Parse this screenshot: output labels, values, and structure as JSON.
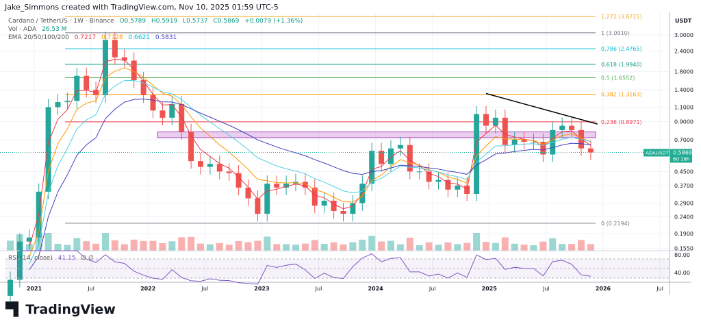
{
  "credit": "Jake_Simmons created with TradingView.com, Nov 10, 2025 01:59 UTC-5",
  "legend": {
    "symbol": "Cardano / TetherUS · 1W · Binance",
    "o": "O0.5789",
    "h": "H0.5919",
    "l": "L0.5737",
    "c": "C0.5869",
    "chg": "+0.0079 (+1.36%)",
    "vol_label": "Vol · ADA",
    "vol_value": "26.53 M",
    "ema_label": "EMA 20/50/100/200",
    "ema": [
      "0.7217",
      "0.7128",
      "0.6621",
      "0.5831"
    ],
    "rsi_label": "RSI (14, close)",
    "rsi_value": "41.15",
    "rsi_extra": "∅ ∅"
  },
  "colors": {
    "up": "#26a69a",
    "down": "#ef5350",
    "ema20": "#f23645",
    "ema50": "#ff9800",
    "ema100": "#4dd0e1",
    "ema200": "#3f3fbf",
    "rsi": "#7e57c2",
    "accent": "#22ab94"
  },
  "logo": "TradingView",
  "chart_data": {
    "type": "candlestick",
    "scale": "log",
    "currency": "USDT",
    "y_ticks": [
      3.0,
      2.4,
      1.8,
      1.4,
      1.1,
      0.9,
      0.7,
      0.45,
      0.37,
      0.29,
      0.24,
      0.19,
      0.155
    ],
    "y_tick_labels": [
      "3.0000",
      "2.4000",
      "1.8000",
      "1.4000",
      "1.1000",
      "0.9000",
      "0.7000",
      "0.4500",
      "0.3700",
      "0.2900",
      "0.2400",
      "0.1900",
      "0.1550"
    ],
    "x_ticks": [
      "2021",
      "Jul",
      "2022",
      "Jul",
      "2023",
      "Jul",
      "2024",
      "Jul",
      "2025",
      "Jul",
      "2026",
      "Jul"
    ],
    "months": [
      "2020-10",
      "2020-11",
      "2020-12",
      "2021-01",
      "2021-02",
      "2021-03",
      "2021-04",
      "2021-05",
      "2021-06",
      "2021-07",
      "2021-08",
      "2021-09",
      "2021-10",
      "2021-11",
      "2021-12",
      "2022-01",
      "2022-02",
      "2022-03",
      "2022-04",
      "2022-05",
      "2022-06",
      "2022-07",
      "2022-08",
      "2022-09",
      "2022-10",
      "2022-11",
      "2022-12",
      "2023-01",
      "2023-02",
      "2023-03",
      "2023-04",
      "2023-05",
      "2023-06",
      "2023-07",
      "2023-08",
      "2023-09",
      "2023-10",
      "2023-11",
      "2023-12",
      "2024-01",
      "2024-02",
      "2024-03",
      "2024-04",
      "2024-05",
      "2024-06",
      "2024-07",
      "2024-08",
      "2024-09",
      "2024-10",
      "2024-11",
      "2024-12",
      "2025-01",
      "2025-02",
      "2025-03",
      "2025-04",
      "2025-05",
      "2025-06",
      "2025-07",
      "2025-08",
      "2025-09",
      "2025-10",
      "2025-11"
    ],
    "closes": [
      0.1,
      0.17,
      0.18,
      0.34,
      1.1,
      1.18,
      1.2,
      1.7,
      1.4,
      1.3,
      2.8,
      2.2,
      2.1,
      1.6,
      1.3,
      1.05,
      0.95,
      1.15,
      0.78,
      0.52,
      0.48,
      0.5,
      0.45,
      0.44,
      0.36,
      0.31,
      0.25,
      0.38,
      0.36,
      0.38,
      0.39,
      0.36,
      0.28,
      0.3,
      0.26,
      0.25,
      0.29,
      0.38,
      0.6,
      0.5,
      0.62,
      0.65,
      0.45,
      0.45,
      0.39,
      0.4,
      0.35,
      0.37,
      0.33,
      1.0,
      0.85,
      0.95,
      0.65,
      0.7,
      0.68,
      0.68,
      0.57,
      0.8,
      0.85,
      0.8,
      0.62,
      0.5869
    ],
    "fib_levels": [
      {
        "label": "1.272 (3.8721)",
        "value": 3.8721,
        "color": "#f5a623"
      },
      {
        "label": "1 (3.0910)",
        "value": 3.091,
        "color": "#787b86"
      },
      {
        "label": "0.786 (2.4765)",
        "value": 2.4765,
        "color": "#00bcd4"
      },
      {
        "label": "0.618 (1.9940)",
        "value": 1.994,
        "color": "#089981"
      },
      {
        "label": "0.5 (1.6552)",
        "value": 1.6552,
        "color": "#4caf50"
      },
      {
        "label": "0.382 (1.3163)",
        "value": 1.3163,
        "color": "#ff9800"
      },
      {
        "label": "0.236 (0.8971)",
        "value": 0.8971,
        "color": "#f23645"
      },
      {
        "label": "0 (0.2194)",
        "value": 0.2194,
        "color": "#787b86"
      }
    ],
    "zone": [
      0.72,
      0.78
    ],
    "trendline": [
      [
        "2024-12",
        1.33
      ],
      [
        "2025-11",
        0.87
      ]
    ],
    "last_price": {
      "symbol": "ADAUSDT",
      "price": "0.5869",
      "countdown": "6d 18h",
      "value": 0.5869
    },
    "rsi_levels": [
      "80.00",
      "40.00"
    ]
  }
}
